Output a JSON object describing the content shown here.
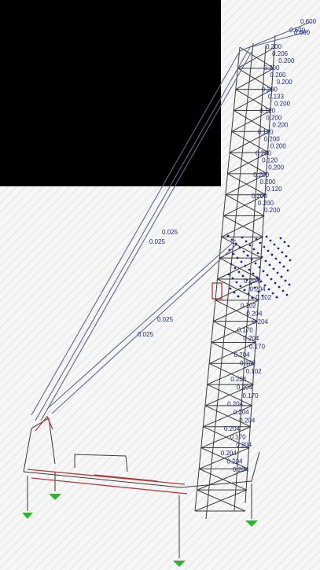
{
  "colors": {
    "frame": "#3a3a3a",
    "member_load": "#1f2a7a",
    "base_member": "#b23a3a",
    "support": "#35b035",
    "overlay": "#000000"
  },
  "cable_labels": [
    "0.025",
    "0.025",
    "0.025",
    "0.025"
  ],
  "top_labels": [
    "0.600",
    "0.600",
    "0.600"
  ],
  "upper_mast_labels": [
    "0.200",
    "0.206",
    "0.200",
    "0.200",
    "0.200",
    "0.200",
    "0.200",
    "0.133",
    "0.200",
    "0.120",
    "0.200",
    "0.200",
    "0.120",
    "0.200",
    "0.200",
    "0.200",
    "0.120",
    "0.200",
    "0.200",
    "0.200",
    "0.120",
    "0.200",
    "0.200",
    "0.200"
  ],
  "lower_mast_labels": [
    "0.204",
    "0.204",
    "0.102",
    "0.102",
    "0.204",
    "0.204",
    "0.170",
    "0.204",
    "0.170",
    "0.204",
    "0.102",
    "0.102",
    "0.204",
    "0.204",
    "0.170",
    "0.204",
    "0.204",
    "0.204",
    "0.204",
    "0.170",
    "0.204",
    "0.204",
    "0.204",
    "0.204"
  ]
}
